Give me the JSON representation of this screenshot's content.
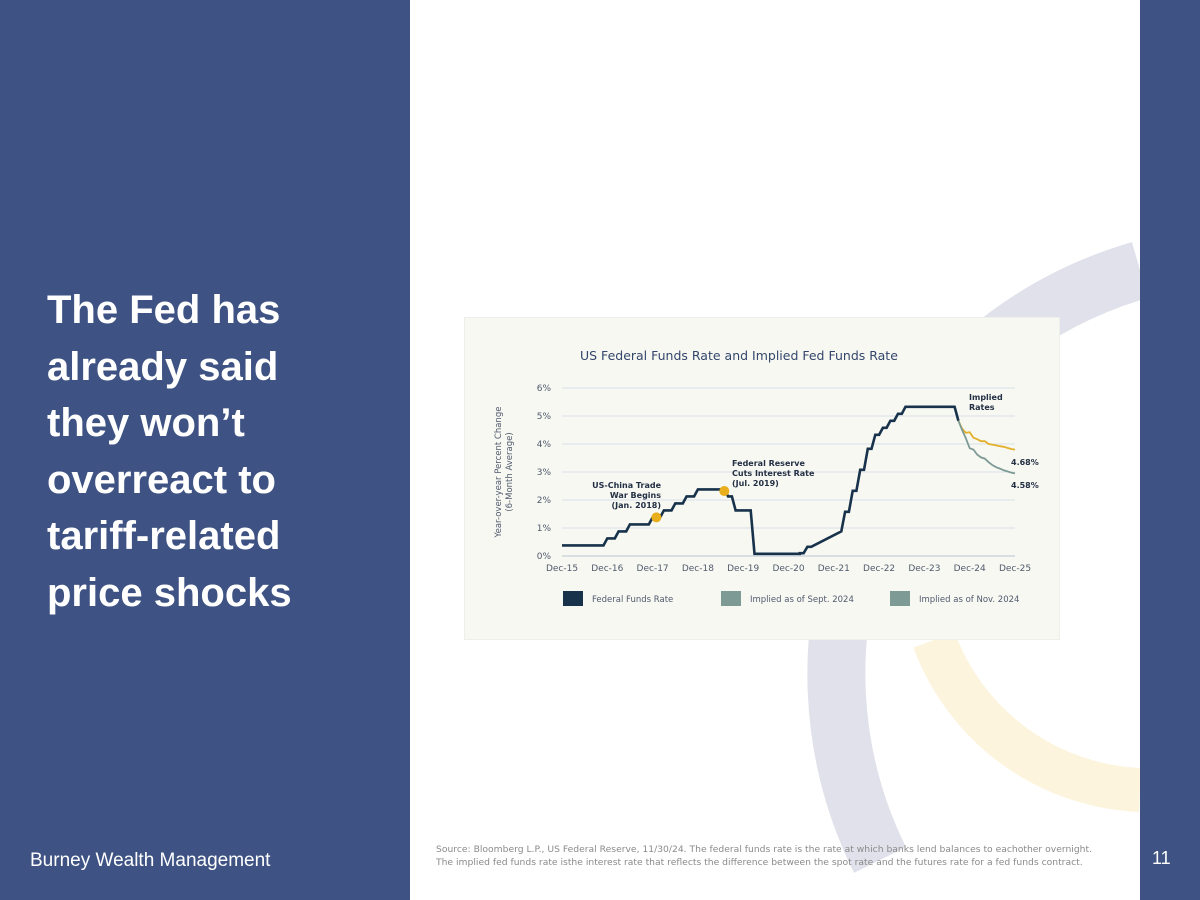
{
  "slide": {
    "headline_lines": [
      "The Fed has",
      "already said",
      "they won’t",
      "overreact to",
      "tariff-related",
      "price shocks"
    ],
    "company": "Burney Wealth Management",
    "page_number": "11",
    "source_lines": [
      "Source: Bloomberg L.P., US Federal Reserve, 11/30/24. The federal funds rate is the rate at which banks lend balances to eachother overnight.",
      "The implied fed funds rate isthe interest rate that reflects the difference between the spot rate and the futures rate for a fed funds contract."
    ]
  },
  "colors": {
    "panel": "#3e5383",
    "fed_line": "#17324a",
    "implied_sept": "#e3b02a",
    "implied_nov": "#7e9a95",
    "legend_implied": "#7e9a95",
    "marker": "#e8ae1c",
    "gridline": "#d8e0ea"
  },
  "chart_data": {
    "type": "line",
    "title": "US Federal Funds Rate and Implied Fed Funds Rate",
    "ylabel_lines": [
      "Year-over-year Percent Change",
      "(6-Month Average)"
    ],
    "xlabel": "",
    "x_tick_labels": [
      "Dec-15",
      "Dec-16",
      "Dec-17",
      "Dec-18",
      "Dec-19",
      "Dec-20",
      "Dec-21",
      "Dec-22",
      "Dec-23",
      "Dec-24",
      "Dec-25"
    ],
    "y_ticks": [
      0,
      1,
      2,
      3,
      4,
      5,
      6
    ],
    "y_tick_labels": [
      "0%",
      "1%",
      "2%",
      "3%",
      "4%",
      "5%",
      "6%"
    ],
    "xlim": [
      "2015-12",
      "2025-12"
    ],
    "ylim": [
      0,
      6
    ],
    "grid": true,
    "legend_position": "bottom",
    "series": [
      {
        "name": "Federal Funds Rate",
        "x": [
          "2015-12",
          "2016-11",
          "2016-12",
          "2017-02",
          "2017-03",
          "2017-05",
          "2017-06",
          "2017-11",
          "2017-12",
          "2018-02",
          "2018-03",
          "2018-05",
          "2018-06",
          "2018-08",
          "2018-09",
          "2018-11",
          "2018-12",
          "2019-07",
          "2019-08",
          "2019-09",
          "2019-10",
          "2020-02",
          "2020-03",
          "2021-02",
          "2021-03",
          "2021-03",
          "2021-04",
          "2021-05",
          "2021-06",
          "2022-02",
          "2022-03",
          "2022-04",
          "2022-05",
          "2022-06",
          "2022-07",
          "2022-08",
          "2022-09",
          "2022-10",
          "2022-11",
          "2022-12",
          "2023-01",
          "2023-02",
          "2023-03",
          "2023-04",
          "2023-05",
          "2023-06",
          "2023-07",
          "2024-08",
          "2024-09"
        ],
        "y": [
          0.38,
          0.38,
          0.63,
          0.63,
          0.88,
          0.88,
          1.13,
          1.13,
          1.38,
          1.38,
          1.63,
          1.63,
          1.88,
          1.88,
          2.13,
          2.13,
          2.38,
          2.38,
          2.13,
          2.13,
          1.63,
          1.63,
          0.08,
          0.08,
          0.08,
          0.1,
          0.1,
          0.33,
          0.33,
          0.88,
          1.58,
          1.58,
          2.33,
          2.33,
          3.08,
          3.08,
          3.83,
          3.83,
          4.33,
          4.33,
          4.58,
          4.58,
          4.83,
          4.83,
          5.08,
          5.08,
          5.33,
          5.33,
          4.83
        ]
      },
      {
        "name": "Implied as of Sept. 2024",
        "x": [
          "2024-09",
          "2024-10",
          "2024-11",
          "2024-12",
          "2025-01",
          "2025-02",
          "2025-03",
          "2025-04",
          "2025-05",
          "2025-06",
          "2025-07",
          "2025-08",
          "2025-09",
          "2025-10",
          "2025-11",
          "2025-12"
        ],
        "y": [
          4.83,
          4.55,
          4.4,
          4.42,
          4.22,
          4.17,
          4.1,
          4.1,
          4.0,
          3.98,
          3.95,
          3.92,
          3.9,
          3.86,
          3.82,
          3.8
        ]
      },
      {
        "name": "Implied as of Nov. 2024",
        "x": [
          "2024-09",
          "2024-10",
          "2024-11",
          "2024-12",
          "2025-01",
          "2025-02",
          "2025-03",
          "2025-04",
          "2025-05",
          "2025-06",
          "2025-07",
          "2025-08",
          "2025-09",
          "2025-10",
          "2025-11",
          "2025-12"
        ],
        "y": [
          4.83,
          4.5,
          4.2,
          3.85,
          3.8,
          3.62,
          3.52,
          3.48,
          3.35,
          3.25,
          3.17,
          3.12,
          3.06,
          3.02,
          2.98,
          2.95
        ]
      }
    ],
    "annotations": [
      {
        "lines": [
          "US-China Trade",
          "War Begins",
          "(Jan. 2018)"
        ],
        "x": "2018-01",
        "y": 1.38
      },
      {
        "lines": [
          "Federal Reserve",
          "Cuts Interest Rate",
          "(Jul. 2019)"
        ],
        "x": "2019-07",
        "y": 2.32
      }
    ],
    "implied_label_lines": [
      "Implied",
      "Rates"
    ],
    "end_labels": [
      "4.68%",
      "4.58%"
    ]
  }
}
